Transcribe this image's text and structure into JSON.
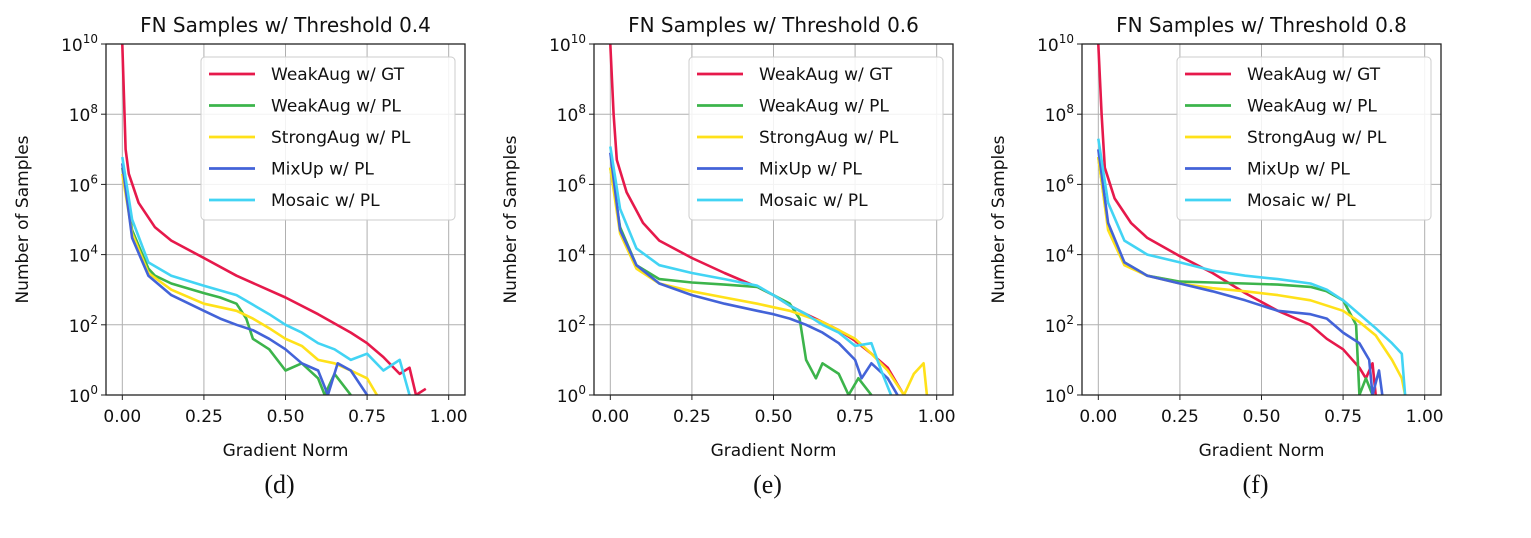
{
  "chart_data": [
    {
      "type": "line",
      "title": "FN Samples w/ Threshold 0.4",
      "caption": "(d)",
      "xlabel": "Gradient Norm",
      "ylabel": "Number of Samples",
      "xlim": [
        -0.05,
        1.05
      ],
      "ylim": [
        1,
        10000000000.0
      ],
      "yscale": "log",
      "grid": true,
      "legend_position": "top-right",
      "xticks": [
        "0.00",
        "0.25",
        "0.50",
        "0.75",
        "1.00"
      ],
      "yticks": [
        "10^0",
        "10^2",
        "10^4",
        "10^6",
        "10^8",
        "10^10"
      ],
      "series": [
        {
          "name": "WeakAug w/ GT",
          "color": "#e6194b",
          "x": [
            0,
            0.005,
            0.01,
            0.02,
            0.05,
            0.1,
            0.15,
            0.25,
            0.35,
            0.5,
            0.6,
            0.7,
            0.75,
            0.8,
            0.85,
            0.88,
            0.9,
            0.93
          ],
          "y": [
            10000000000.0,
            300000000.0,
            10000000.0,
            2000000.0,
            300000.0,
            60000.0,
            25000.0,
            8000.0,
            2500.0,
            600,
            200,
            60,
            30,
            12,
            4,
            6,
            1,
            1.5
          ]
        },
        {
          "name": "WeakAug w/ PL",
          "color": "#3cb44b",
          "x": [
            0,
            0.03,
            0.08,
            0.1,
            0.15,
            0.25,
            0.3,
            0.35,
            0.38,
            0.4,
            0.45,
            0.5,
            0.55,
            0.6,
            0.62,
            0.65,
            0.7
          ],
          "y": [
            3000000.0,
            50000.0,
            4000.0,
            2500.0,
            1500.0,
            800,
            600,
            400,
            150,
            40,
            20,
            5,
            8,
            3,
            1,
            4,
            1
          ]
        },
        {
          "name": "StrongAug w/ PL",
          "color": "#ffe119",
          "x": [
            0,
            0.03,
            0.08,
            0.15,
            0.25,
            0.35,
            0.4,
            0.45,
            0.5,
            0.55,
            0.6,
            0.65,
            0.7,
            0.75,
            0.78
          ],
          "y": [
            2000000.0,
            40000.0,
            3000.0,
            1000.0,
            400,
            250,
            150,
            80,
            40,
            25,
            10,
            8,
            5,
            3,
            1
          ]
        },
        {
          "name": "MixUp w/ PL",
          "color": "#4363d8",
          "x": [
            0,
            0.03,
            0.08,
            0.15,
            0.25,
            0.3,
            0.35,
            0.4,
            0.45,
            0.5,
            0.55,
            0.6,
            0.63,
            0.66,
            0.7,
            0.75
          ],
          "y": [
            4000000.0,
            30000.0,
            2500.0,
            700,
            250,
            150,
            100,
            70,
            40,
            20,
            8,
            5,
            1,
            8,
            5,
            1
          ]
        },
        {
          "name": "Mosaic w/ PL",
          "color": "#42d4f4",
          "x": [
            0,
            0.03,
            0.08,
            0.15,
            0.25,
            0.35,
            0.45,
            0.5,
            0.55,
            0.6,
            0.65,
            0.7,
            0.75,
            0.8,
            0.85,
            0.88
          ],
          "y": [
            6000000.0,
            100000.0,
            6000.0,
            2500.0,
            1300.0,
            700,
            200,
            100,
            60,
            30,
            20,
            10,
            15,
            5,
            10,
            1
          ]
        }
      ]
    },
    {
      "type": "line",
      "title": "FN Samples w/ Threshold 0.6",
      "caption": "(e)",
      "xlabel": "Gradient Norm",
      "ylabel": "Number of Samples",
      "xlim": [
        -0.05,
        1.05
      ],
      "ylim": [
        1,
        10000000000.0
      ],
      "yscale": "log",
      "grid": true,
      "legend_position": "top-right",
      "xticks": [
        "0.00",
        "0.25",
        "0.50",
        "0.75",
        "1.00"
      ],
      "yticks": [
        "10^0",
        "10^2",
        "10^4",
        "10^6",
        "10^8",
        "10^10"
      ],
      "series": [
        {
          "name": "WeakAug w/ GT",
          "color": "#e6194b",
          "x": [
            0,
            0.01,
            0.02,
            0.05,
            0.1,
            0.15,
            0.25,
            0.35,
            0.45,
            0.5,
            0.55,
            0.6,
            0.65,
            0.7,
            0.75,
            0.8,
            0.85,
            0.88,
            0.9
          ],
          "y": [
            10000000000.0,
            100000000.0,
            5000000.0,
            600000.0,
            80000.0,
            25000.0,
            8000.0,
            3000.0,
            1200.0,
            700,
            350,
            200,
            120,
            70,
            35,
            15,
            6,
            2,
            1
          ]
        },
        {
          "name": "WeakAug w/ PL",
          "color": "#3cb44b",
          "x": [
            0,
            0.03,
            0.08,
            0.15,
            0.25,
            0.35,
            0.45,
            0.5,
            0.55,
            0.58,
            0.6,
            0.63,
            0.65,
            0.7,
            0.73,
            0.76,
            0.8
          ],
          "y": [
            3000000.0,
            60000.0,
            5000.0,
            2000.0,
            1600.0,
            1400.0,
            1200.0,
            700,
            400,
            150,
            10,
            3,
            8,
            4,
            1,
            3,
            1
          ]
        },
        {
          "name": "StrongAug w/ PL",
          "color": "#ffe119",
          "x": [
            0,
            0.03,
            0.08,
            0.15,
            0.25,
            0.35,
            0.45,
            0.55,
            0.65,
            0.7,
            0.75,
            0.8,
            0.85,
            0.9,
            0.93,
            0.96,
            0.97
          ],
          "y": [
            3000000.0,
            40000.0,
            4000.0,
            1500.0,
            900,
            600,
            400,
            250,
            120,
            70,
            40,
            15,
            5,
            1,
            4,
            8,
            1
          ]
        },
        {
          "name": "MixUp w/ PL",
          "color": "#4363d8",
          "x": [
            0,
            0.03,
            0.08,
            0.15,
            0.25,
            0.35,
            0.45,
            0.5,
            0.55,
            0.6,
            0.65,
            0.7,
            0.75,
            0.77,
            0.8,
            0.85,
            0.88
          ],
          "y": [
            8000000.0,
            50000.0,
            5000.0,
            1500.0,
            700,
            400,
            250,
            200,
            150,
            100,
            60,
            30,
            10,
            3,
            8,
            3,
            1
          ]
        },
        {
          "name": "Mosaic w/ PL",
          "color": "#42d4f4",
          "x": [
            0,
            0.03,
            0.08,
            0.15,
            0.25,
            0.35,
            0.45,
            0.5,
            0.55,
            0.6,
            0.65,
            0.7,
            0.75,
            0.8,
            0.83,
            0.86
          ],
          "y": [
            12000000.0,
            200000.0,
            15000.0,
            5000.0,
            3000.0,
            2000.0,
            1300.0,
            700,
            350,
            200,
            100,
            60,
            25,
            30,
            5,
            1
          ]
        }
      ]
    },
    {
      "type": "line",
      "title": "FN Samples w/ Threshold 0.8",
      "caption": "(f)",
      "xlabel": "Gradient Norm",
      "ylabel": "Number of Samples",
      "xlim": [
        -0.05,
        1.05
      ],
      "ylim": [
        1,
        10000000000.0
      ],
      "yscale": "log",
      "grid": true,
      "legend_position": "top-right",
      "xticks": [
        "0.00",
        "0.25",
        "0.50",
        "0.75",
        "1.00"
      ],
      "yticks": [
        "10^0",
        "10^2",
        "10^4",
        "10^6",
        "10^8",
        "10^10"
      ],
      "series": [
        {
          "name": "WeakAug w/ GT",
          "color": "#e6194b",
          "x": [
            0,
            0.01,
            0.02,
            0.05,
            0.1,
            0.15,
            0.25,
            0.35,
            0.45,
            0.55,
            0.65,
            0.7,
            0.75,
            0.8,
            0.82,
            0.84,
            0.85
          ],
          "y": [
            10000000000.0,
            100000000.0,
            3000000.0,
            400000.0,
            80000.0,
            30000.0,
            9000.0,
            3000.0,
            800,
            250,
            100,
            40,
            20,
            6,
            3,
            8,
            1
          ]
        },
        {
          "name": "WeakAug w/ PL",
          "color": "#3cb44b",
          "x": [
            0,
            0.03,
            0.08,
            0.15,
            0.25,
            0.35,
            0.45,
            0.55,
            0.65,
            0.7,
            0.75,
            0.78,
            0.79,
            0.8,
            0.82,
            0.84
          ],
          "y": [
            6000000.0,
            60000.0,
            6000.0,
            2500.0,
            1700.0,
            1600.0,
            1500.0,
            1400.0,
            1200.0,
            900,
            500,
            150,
            100,
            1,
            3,
            1
          ]
        },
        {
          "name": "StrongAug w/ PL",
          "color": "#ffe119",
          "x": [
            0,
            0.03,
            0.08,
            0.15,
            0.25,
            0.35,
            0.45,
            0.55,
            0.65,
            0.75,
            0.8,
            0.85,
            0.9,
            0.93,
            0.94
          ],
          "y": [
            6000000.0,
            50000.0,
            5000.0,
            2500.0,
            1500.0,
            1100.0,
            900,
            700,
            500,
            250,
            120,
            50,
            10,
            3,
            1
          ]
        },
        {
          "name": "MixUp w/ PL",
          "color": "#4363d8",
          "x": [
            0,
            0.03,
            0.08,
            0.15,
            0.25,
            0.35,
            0.45,
            0.55,
            0.65,
            0.7,
            0.75,
            0.8,
            0.83,
            0.84,
            0.86,
            0.87
          ],
          "y": [
            10000000.0,
            80000.0,
            6000.0,
            2500.0,
            1500.0,
            900,
            500,
            250,
            200,
            150,
            60,
            30,
            10,
            1,
            5,
            1
          ]
        },
        {
          "name": "Mosaic w/ PL",
          "color": "#42d4f4",
          "x": [
            0,
            0.03,
            0.08,
            0.15,
            0.25,
            0.35,
            0.45,
            0.55,
            0.65,
            0.7,
            0.75,
            0.8,
            0.85,
            0.9,
            0.93,
            0.94
          ],
          "y": [
            20000000.0,
            300000.0,
            25000.0,
            10000.0,
            6000.0,
            3500.0,
            2500.0,
            2000.0,
            1500.0,
            1000.0,
            500,
            200,
            80,
            30,
            15,
            1
          ]
        }
      ]
    }
  ]
}
